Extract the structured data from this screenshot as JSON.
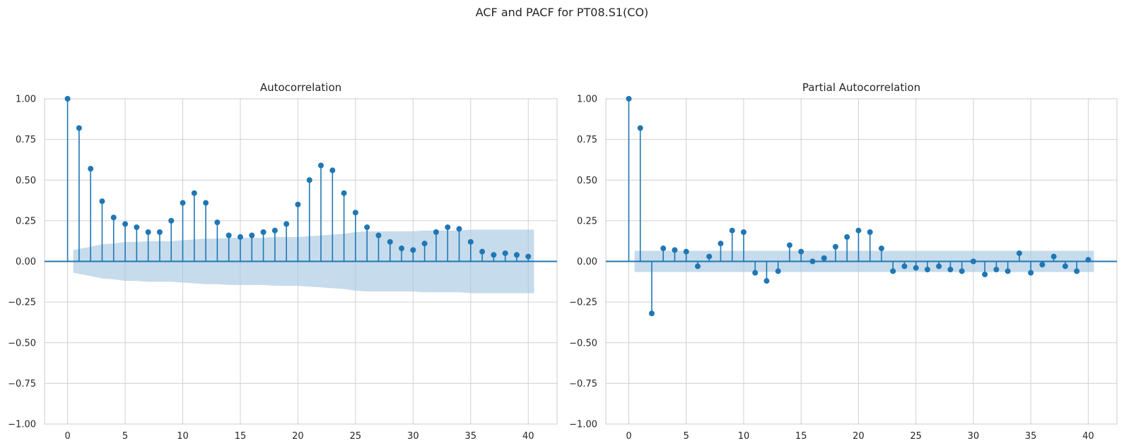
{
  "figure": {
    "suptitle": "ACF and PACF for PT08.S1(CO)"
  },
  "colors": {
    "stem": "#1f77b4",
    "band": "#a8c8e2",
    "grid": "#d0d0d0",
    "frame": "#cccccc"
  },
  "chart_data": [
    {
      "type": "stem",
      "title": "Autocorrelation",
      "xlabel": "",
      "ylabel": "",
      "xlim": [
        -2,
        42.5
      ],
      "ylim": [
        -1,
        1
      ],
      "xticks": [
        0,
        5,
        10,
        15,
        20,
        25,
        30,
        35,
        40
      ],
      "yticks": [
        -1.0,
        -0.75,
        -0.5,
        -0.25,
        0.0,
        0.25,
        0.5,
        0.75,
        1.0
      ],
      "grid": true,
      "lags": [
        0,
        1,
        2,
        3,
        4,
        5,
        6,
        7,
        8,
        9,
        10,
        11,
        12,
        13,
        14,
        15,
        16,
        17,
        18,
        19,
        20,
        21,
        22,
        23,
        24,
        25,
        26,
        27,
        28,
        29,
        30,
        31,
        32,
        33,
        34,
        35,
        36,
        37,
        38,
        39,
        40
      ],
      "values": [
        1.0,
        0.82,
        0.57,
        0.37,
        0.27,
        0.23,
        0.21,
        0.18,
        0.18,
        0.25,
        0.36,
        0.42,
        0.36,
        0.24,
        0.16,
        0.15,
        0.16,
        0.18,
        0.19,
        0.23,
        0.35,
        0.5,
        0.59,
        0.56,
        0.42,
        0.3,
        0.21,
        0.16,
        0.12,
        0.08,
        0.07,
        0.11,
        0.18,
        0.21,
        0.2,
        0.12,
        0.06,
        0.04,
        0.05,
        0.04,
        0.03
      ],
      "confint": [
        0.0,
        0.07,
        0.09,
        0.105,
        0.11,
        0.12,
        0.12,
        0.125,
        0.125,
        0.125,
        0.13,
        0.135,
        0.14,
        0.14,
        0.145,
        0.145,
        0.145,
        0.145,
        0.15,
        0.15,
        0.15,
        0.155,
        0.16,
        0.165,
        0.17,
        0.18,
        0.185,
        0.185,
        0.185,
        0.185,
        0.185,
        0.19,
        0.19,
        0.19,
        0.19,
        0.195,
        0.195,
        0.195,
        0.195,
        0.195,
        0.195
      ]
    },
    {
      "type": "stem",
      "title": "Partial Autocorrelation",
      "xlabel": "",
      "ylabel": "",
      "xlim": [
        -2,
        42.5
      ],
      "ylim": [
        -1,
        1
      ],
      "xticks": [
        0,
        5,
        10,
        15,
        20,
        25,
        30,
        35,
        40
      ],
      "yticks": [
        -1.0,
        -0.75,
        -0.5,
        -0.25,
        0.0,
        0.25,
        0.5,
        0.75,
        1.0
      ],
      "grid": true,
      "lags": [
        0,
        1,
        2,
        3,
        4,
        5,
        6,
        7,
        8,
        9,
        10,
        11,
        12,
        13,
        14,
        15,
        16,
        17,
        18,
        19,
        20,
        21,
        22,
        23,
        24,
        25,
        26,
        27,
        28,
        29,
        30,
        31,
        32,
        33,
        34,
        35,
        36,
        37,
        38,
        39,
        40
      ],
      "values": [
        1.0,
        0.82,
        -0.32,
        0.08,
        0.07,
        0.06,
        -0.03,
        0.03,
        0.11,
        0.19,
        0.18,
        -0.07,
        -0.12,
        -0.06,
        0.1,
        0.06,
        0.0,
        0.02,
        0.09,
        0.15,
        0.19,
        0.18,
        0.08,
        -0.06,
        -0.03,
        -0.04,
        -0.05,
        -0.03,
        -0.05,
        -0.06,
        0.0,
        -0.08,
        -0.05,
        -0.06,
        0.05,
        -0.07,
        -0.02,
        0.03,
        -0.03,
        -0.06,
        0.01
      ],
      "confint_const": 0.065
    }
  ]
}
